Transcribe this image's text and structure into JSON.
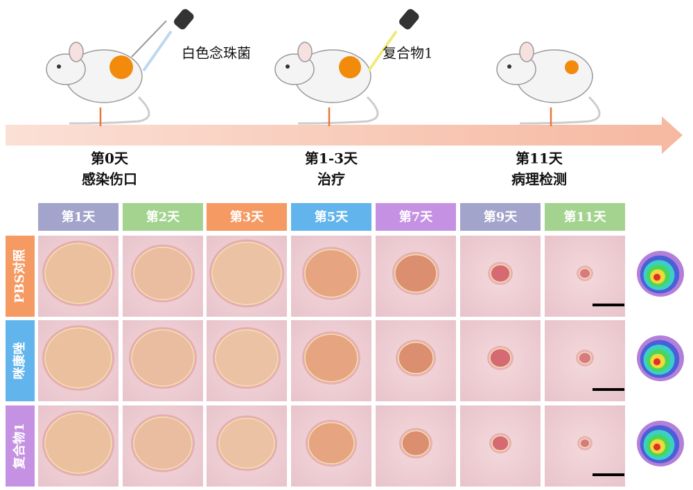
{
  "timeline": {
    "agents": [
      "白色念珠菌",
      "复合物1"
    ],
    "events": [
      {
        "day": "第0天",
        "desc": "感染伤口"
      },
      {
        "day": "第1-3天",
        "desc": "治疗"
      },
      {
        "day": "第11天",
        "desc": "病理检测"
      }
    ]
  },
  "table": {
    "columns": [
      "第1天",
      "第2天",
      "第3天",
      "第5天",
      "第7天",
      "第9天",
      "第11天"
    ],
    "rows": [
      "PBS对照",
      "咪康唑",
      "复合物1"
    ]
  }
}
